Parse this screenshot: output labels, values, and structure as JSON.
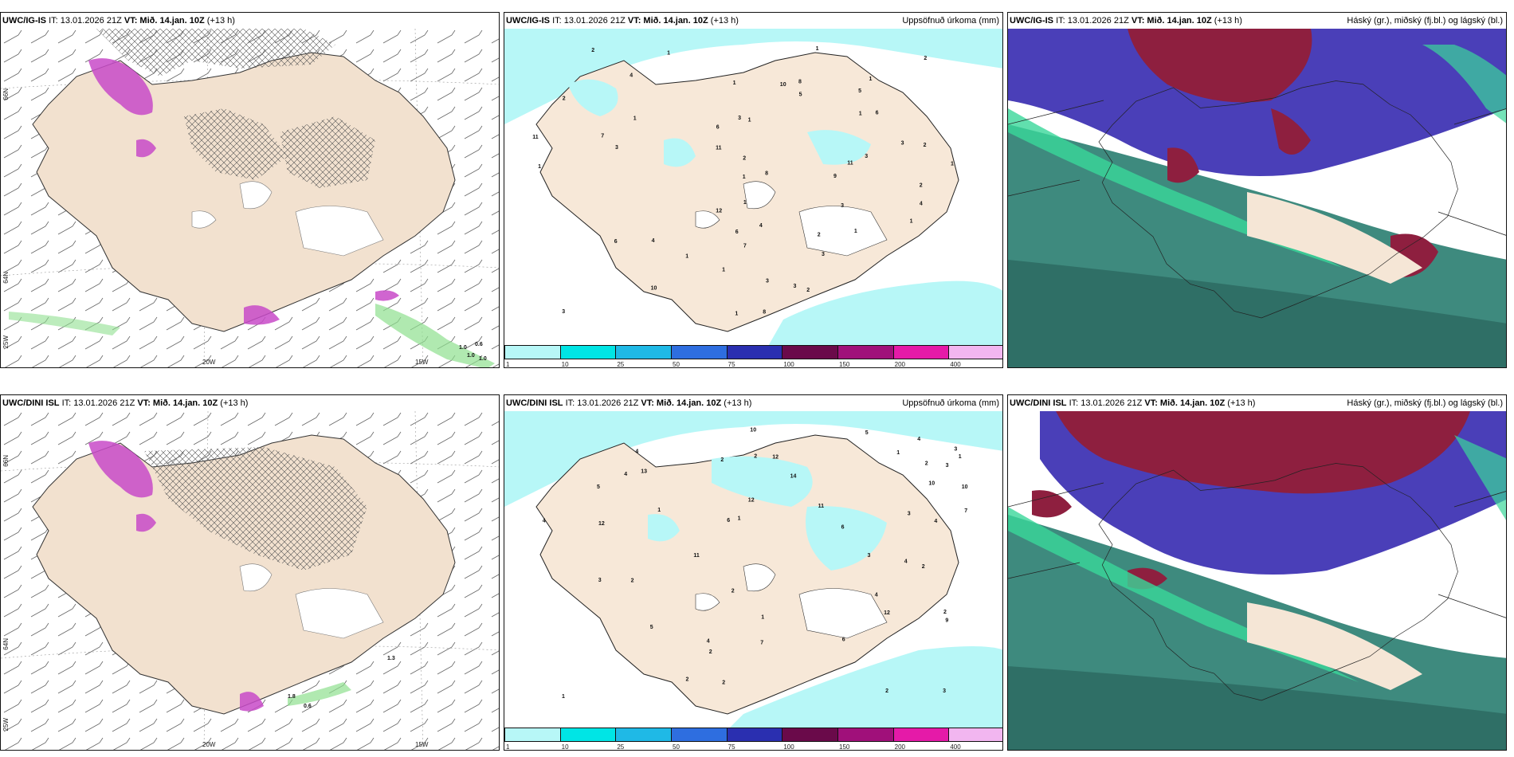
{
  "panels": [
    {
      "source": "UWC/IG-IS",
      "it": "IT: 13.01.2026 21Z",
      "vt": "VT: Mið. 14.jan. 10Z",
      "lead": "(+13 h)",
      "right": ""
    },
    {
      "source": "UWC/IG-IS",
      "it": "IT: 13.01.2026 21Z",
      "vt": "VT: Mið. 14.jan. 10Z",
      "lead": "(+13 h)",
      "right": "Uppsöfnuð úrkoma (mm)"
    },
    {
      "source": "UWC/IG-IS",
      "it": "IT: 13.01.2026 21Z",
      "vt": "VT: Mið. 14.jan. 10Z",
      "lead": "(+13 h)",
      "right": "Háský (gr.), miðský (fj.bl.) og lágský (bl.)"
    },
    {
      "source": "UWC/DINI ISL",
      "it": "IT: 13.01.2026 21Z",
      "vt": "VT: Mið. 14.jan. 10Z",
      "lead": "(+13 h)",
      "right": ""
    },
    {
      "source": "UWC/DINI ISL",
      "it": "IT: 13.01.2026 21Z",
      "vt": "VT: Mið. 14.jan. 10Z",
      "lead": "(+13 h)",
      "right": "Uppsöfnuð úrkoma (mm)"
    },
    {
      "source": "UWC/DINI ISL",
      "it": "IT: 13.01.2026 21Z",
      "vt": "VT: Mið. 14.jan. 10Z",
      "lead": "(+13 h)",
      "right": "Háský (gr.), miðský (fj.bl.) og lágský (bl.)"
    }
  ],
  "axis_labels": {
    "lat_66": "66N",
    "lat_64": "64N",
    "lon_25": "25W",
    "lon_20": "20W",
    "lon_15": "15W"
  },
  "colorbar": {
    "ticks": [
      "1",
      "10",
      "25",
      "50",
      "75",
      "100",
      "150",
      "200",
      "400"
    ],
    "colors": [
      "#b7f7f7",
      "#00e5e5",
      "#1fb9e6",
      "#2e6ee0",
      "#2a2fb0",
      "#6a0a4a",
      "#a0107a",
      "#e51aa8",
      "#f2b6f0"
    ]
  },
  "colors": {
    "land": "#f5e6d6",
    "precip_light": "#b7f7f7",
    "precip_mid": "#7fe5e8",
    "snow": "#c84ac8",
    "rain": "#7fe07f",
    "high_cloud": "#2a7a6a",
    "mid_cloud": "#4a3fb8",
    "low_cloud": "#8e1f3f"
  },
  "precip_numbers_top": [
    "2",
    "2",
    "8",
    "4",
    "1",
    "1",
    "6",
    "7",
    "11",
    "11",
    "10",
    "9",
    "12",
    "8",
    "8",
    "4",
    "3",
    "4",
    "3",
    "6",
    "3",
    "2",
    "1",
    "2",
    "3",
    "3",
    "3",
    "2",
    "3",
    "1",
    "1",
    "1",
    "5",
    "4",
    "2",
    "1",
    "1",
    "2",
    "1",
    "1",
    "1",
    "1",
    "2",
    "1",
    "1",
    "1",
    "1",
    "6",
    "7",
    "11",
    "10",
    "6",
    "5",
    "3",
    "3"
  ],
  "precip_numbers_bottom": [
    "2",
    "11",
    "2",
    "4",
    "5",
    "4",
    "3",
    "4",
    "6",
    "2",
    "12",
    "12",
    "1",
    "5",
    "3",
    "4",
    "10",
    "11",
    "10",
    "13",
    "12",
    "14",
    "5",
    "12",
    "6",
    "9",
    "3",
    "2",
    "3",
    "2",
    "2",
    "1",
    "1",
    "1",
    "2",
    "2",
    "2",
    "1",
    "1",
    "2",
    "6",
    "7",
    "4",
    "3",
    "4",
    "10",
    "4",
    "4",
    "7",
    "3",
    "2"
  ],
  "windmap_values_top": [
    "1.0",
    "0.6",
    "1.0",
    "1.0"
  ],
  "windmap_values_bottom": [
    "1.8",
    "0.6",
    "1.3"
  ]
}
